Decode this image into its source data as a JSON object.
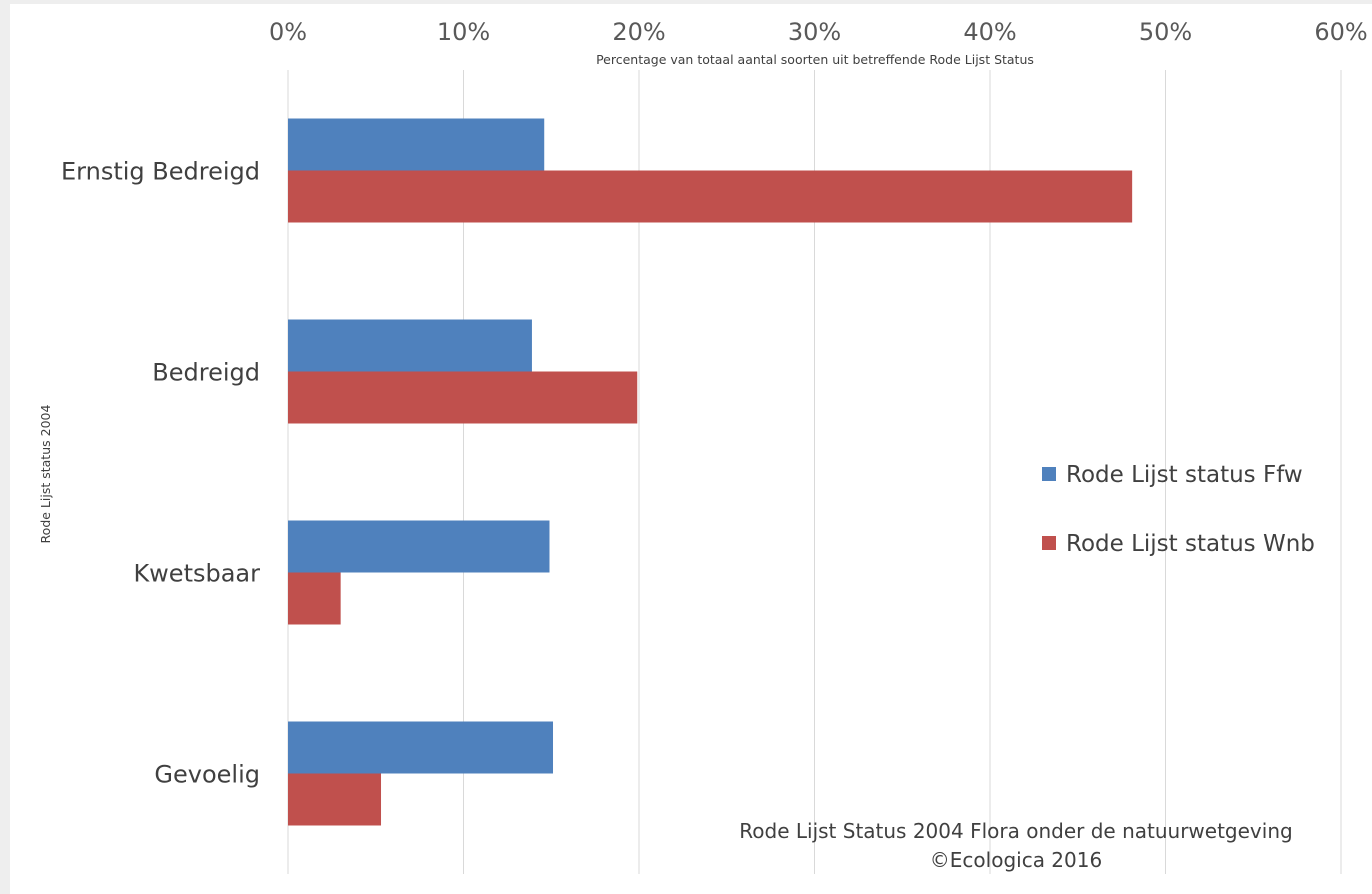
{
  "chart_data": {
    "type": "bar",
    "orientation": "horizontal",
    "categories": [
      "Ernstig Bedreigd",
      "Bedreigd",
      "Kwetsbaar",
      "Gevoelig"
    ],
    "series": [
      {
        "name": "Rode Lijst status Ffw",
        "color": "#4f81bd",
        "values": [
          14.6,
          13.9,
          14.9,
          15.1
        ]
      },
      {
        "name": "Rode Lijst status Wnb",
        "color": "#c0504d",
        "values": [
          48.1,
          19.9,
          3.0,
          5.3
        ]
      }
    ],
    "xlabel": "Percentage van totaal aantal soorten uit betreffende Rode Lijst Status",
    "ylabel": "Rode Lijst status 2004",
    "xlim": [
      0,
      60
    ],
    "xticks": [
      0,
      10,
      20,
      30,
      40,
      50,
      60
    ],
    "tick_labels": [
      "0%",
      "10%",
      "20%",
      "30%",
      "40%",
      "50%",
      "60%"
    ],
    "x_axis_position": "top",
    "grid": true,
    "legend_position": "right",
    "annotation": {
      "line1": "Rode Lijst Status 2004 Flora onder de natuurwetgeving",
      "line2": "©Ecologica 2016"
    }
  }
}
